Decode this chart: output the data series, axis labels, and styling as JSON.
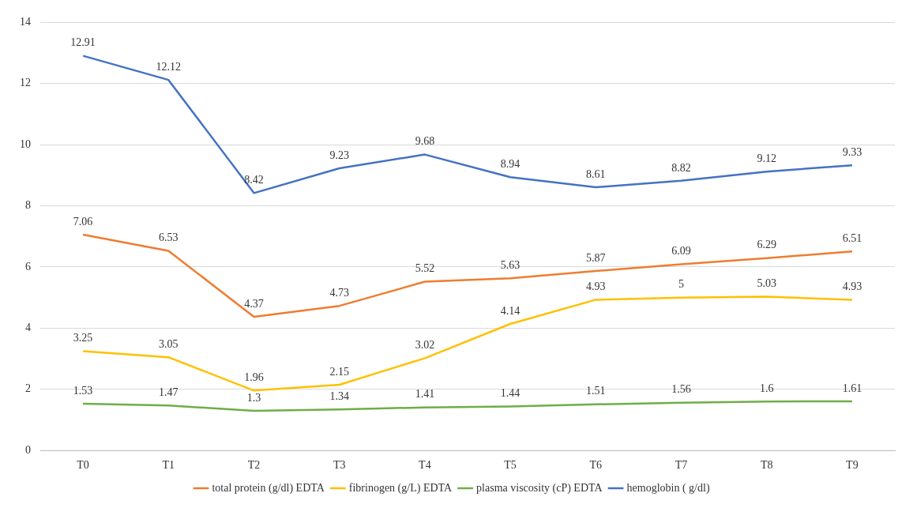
{
  "chart_data": {
    "type": "line",
    "categories": [
      "T0",
      "T1",
      "T2",
      "T3",
      "T4",
      "T5",
      "T6",
      "T7",
      "T8",
      "T9"
    ],
    "series": [
      {
        "name": "total protein (g/dl) EDTA",
        "color": "#ed7d31",
        "values": [
          7.06,
          6.53,
          4.37,
          4.73,
          5.52,
          5.63,
          5.87,
          6.09,
          6.29,
          6.51
        ]
      },
      {
        "name": "fibrinogen (g/L) EDTA",
        "color": "#ffc000",
        "values": [
          3.25,
          3.05,
          1.96,
          2.15,
          3.02,
          4.14,
          4.93,
          5,
          5.03,
          4.93
        ]
      },
      {
        "name": "plasma viscosity (cP) EDTA",
        "color": "#70ad47",
        "values": [
          1.53,
          1.47,
          1.3,
          1.34,
          1.41,
          1.44,
          1.51,
          1.56,
          1.6,
          1.61
        ]
      },
      {
        "name": "hemoglobin ( g/dl)",
        "color": "#4472c4",
        "values": [
          12.91,
          12.12,
          8.42,
          9.23,
          9.68,
          8.94,
          8.61,
          8.82,
          9.12,
          9.33
        ]
      }
    ],
    "ylim": [
      0,
      14
    ],
    "yticks": [
      0,
      2,
      4,
      6,
      8,
      10,
      12,
      14
    ],
    "grid": "y",
    "legend": "bottom",
    "marker": "none",
    "line_style": "solid",
    "data_labels": true
  }
}
